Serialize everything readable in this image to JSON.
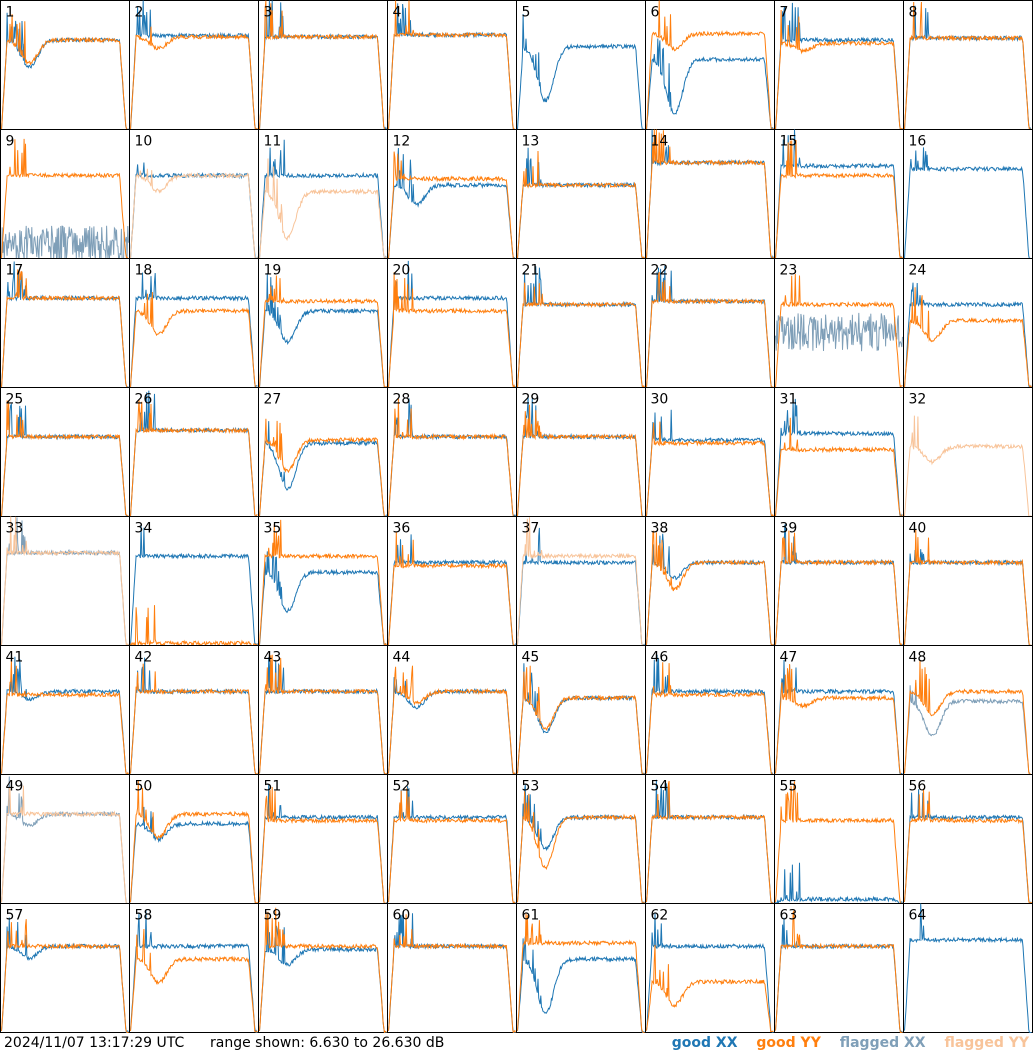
{
  "footer": {
    "timestamp": "2024/11/07 13:17:29 UTC",
    "range": "range shown: 6.630 to 26.630 dB"
  },
  "legend": [
    {
      "label": "good XX",
      "color": "#1f77b4"
    },
    {
      "label": "good YY",
      "color": "#ff7f0e"
    },
    {
      "label": "flagged XX",
      "color": "#7f9fb8"
    },
    {
      "label": "flagged YY",
      "color": "#f8c49a"
    }
  ],
  "chart_data": {
    "type": "line",
    "grid": {
      "rows": 8,
      "cols": 8
    },
    "ylim": [
      6.63,
      26.63
    ],
    "panel_labels": [
      "1",
      "2",
      "3",
      "4",
      "5",
      "6",
      "7",
      "8",
      "9",
      "10",
      "11",
      "12",
      "13",
      "14",
      "15",
      "16",
      "17",
      "18",
      "19",
      "20",
      "21",
      "22",
      "23",
      "24",
      "25",
      "26",
      "27",
      "28",
      "29",
      "30",
      "31",
      "32",
      "33",
      "34",
      "35",
      "36",
      "37",
      "38",
      "39",
      "40",
      "41",
      "42",
      "43",
      "44",
      "45",
      "46",
      "47",
      "48",
      "49",
      "50",
      "51",
      "52",
      "53",
      "54",
      "55",
      "56",
      "57",
      "58",
      "59",
      "60",
      "61",
      "62",
      "63",
      "64"
    ],
    "panels": [
      {
        "label": "1",
        "xx": {
          "level": 20.5,
          "state": "good",
          "dip": 0.35
        },
        "yy": {
          "level": 20.5,
          "state": "good",
          "dip": 0.3
        }
      },
      {
        "label": "2",
        "xx": {
          "level": 21.2,
          "state": "good",
          "dip": 0
        },
        "yy": {
          "level": 21.0,
          "state": "good",
          "dip": 0.15
        }
      },
      {
        "label": "3",
        "xx": {
          "level": 21.0,
          "state": "good",
          "dip": 0
        },
        "yy": {
          "level": 21.0,
          "state": "good",
          "dip": 0
        }
      },
      {
        "label": "4",
        "xx": {
          "level": 21.3,
          "state": "good",
          "dip": 0
        },
        "yy": {
          "level": 21.3,
          "state": "good",
          "dip": 0
        }
      },
      {
        "label": "5",
        "xx": {
          "level": 19.5,
          "state": "good",
          "dip": 0.7
        },
        "yy": {
          "level": null,
          "state": "none",
          "dip": 0
        }
      },
      {
        "label": "6",
        "xx": {
          "level": 17.5,
          "state": "good",
          "dip": 0.7
        },
        "yy": {
          "level": 21.5,
          "state": "good",
          "dip": 0.2
        }
      },
      {
        "label": "7",
        "xx": {
          "level": 20.5,
          "state": "good",
          "dip": 0
        },
        "yy": {
          "level": 20.0,
          "state": "good",
          "dip": 0.1
        }
      },
      {
        "label": "8",
        "xx": {
          "level": 20.8,
          "state": "good",
          "dip": 0
        },
        "yy": {
          "level": 20.8,
          "state": "good",
          "dip": 0
        }
      },
      {
        "label": "9",
        "xx": {
          "level": 7.5,
          "state": "flagged",
          "dip": 0
        },
        "yy": {
          "level": 19.5,
          "state": "good",
          "dip": 0
        }
      },
      {
        "label": "10",
        "xx": {
          "level": 19.5,
          "state": "good",
          "dip": 0
        },
        "yy": {
          "level": 19.5,
          "state": "flagged",
          "dip": 0.2
        }
      },
      {
        "label": "11",
        "xx": {
          "level": 19.5,
          "state": "good",
          "dip": 0
        },
        "yy": {
          "level": 17.0,
          "state": "flagged",
          "dip": 0.6
        }
      },
      {
        "label": "12",
        "xx": {
          "level": 18.0,
          "state": "good",
          "dip": 0.25
        },
        "yy": {
          "level": 19.0,
          "state": "good",
          "dip": 0
        }
      },
      {
        "label": "13",
        "xx": {
          "level": 18.0,
          "state": "good",
          "dip": 0
        },
        "yy": {
          "level": 18.0,
          "state": "good",
          "dip": 0
        }
      },
      {
        "label": "14",
        "xx": {
          "level": 21.5,
          "state": "good",
          "dip": 0
        },
        "yy": {
          "level": 21.5,
          "state": "good",
          "dip": 0
        }
      },
      {
        "label": "15",
        "xx": {
          "level": 21.0,
          "state": "good",
          "dip": 0
        },
        "yy": {
          "level": 19.5,
          "state": "good",
          "dip": 0
        }
      },
      {
        "label": "16",
        "xx": {
          "level": 20.5,
          "state": "good",
          "dip": 0
        },
        "yy": {
          "level": null,
          "state": "none",
          "dip": 0
        }
      },
      {
        "label": "17",
        "xx": {
          "level": 20.5,
          "state": "good",
          "dip": 0
        },
        "yy": {
          "level": 20.5,
          "state": "good",
          "dip": 0
        }
      },
      {
        "label": "18",
        "xx": {
          "level": 20.5,
          "state": "good",
          "dip": 0
        },
        "yy": {
          "level": 18.5,
          "state": "good",
          "dip": 0.3
        }
      },
      {
        "label": "19",
        "xx": {
          "level": 18.5,
          "state": "good",
          "dip": 0.4
        },
        "yy": {
          "level": 20.0,
          "state": "good",
          "dip": 0
        }
      },
      {
        "label": "20",
        "xx": {
          "level": 20.5,
          "state": "good",
          "dip": 0
        },
        "yy": {
          "level": 18.5,
          "state": "good",
          "dip": 0
        }
      },
      {
        "label": "21",
        "xx": {
          "level": 19.5,
          "state": "good",
          "dip": 0
        },
        "yy": {
          "level": 19.5,
          "state": "good",
          "dip": 0
        }
      },
      {
        "label": "22",
        "xx": {
          "level": 20.0,
          "state": "good",
          "dip": 0
        },
        "yy": {
          "level": 20.0,
          "state": "good",
          "dip": 0
        }
      },
      {
        "label": "23",
        "xx": {
          "level": 14.0,
          "state": "flagged",
          "dip": 0
        },
        "yy": {
          "level": 19.5,
          "state": "good",
          "dip": 0
        }
      },
      {
        "label": "24",
        "xx": {
          "level": 19.5,
          "state": "good",
          "dip": 0
        },
        "yy": {
          "level": 17.0,
          "state": "good",
          "dip": 0.25
        }
      },
      {
        "label": "25",
        "xx": {
          "level": 19.0,
          "state": "good",
          "dip": 0
        },
        "yy": {
          "level": 19.0,
          "state": "good",
          "dip": 0
        }
      },
      {
        "label": "26",
        "xx": {
          "level": 20.0,
          "state": "good",
          "dip": 0
        },
        "yy": {
          "level": 20.0,
          "state": "good",
          "dip": 0
        }
      },
      {
        "label": "27",
        "xx": {
          "level": 18.0,
          "state": "good",
          "dip": 0.6
        },
        "yy": {
          "level": 18.5,
          "state": "good",
          "dip": 0.4
        }
      },
      {
        "label": "28",
        "xx": {
          "level": 19.0,
          "state": "good",
          "dip": 0
        },
        "yy": {
          "level": 19.0,
          "state": "good",
          "dip": 0
        }
      },
      {
        "label": "29",
        "xx": {
          "level": 19.0,
          "state": "good",
          "dip": 0
        },
        "yy": {
          "level": 19.0,
          "state": "good",
          "dip": 0
        }
      },
      {
        "label": "30",
        "xx": {
          "level": 18.5,
          "state": "good",
          "dip": 0
        },
        "yy": {
          "level": 18.0,
          "state": "good",
          "dip": 0
        }
      },
      {
        "label": "31",
        "xx": {
          "level": 19.5,
          "state": "good",
          "dip": 0
        },
        "yy": {
          "level": 17.0,
          "state": "good",
          "dip": 0
        }
      },
      {
        "label": "32",
        "xx": {
          "level": null,
          "state": "none",
          "dip": 0
        },
        "yy": {
          "level": 17.5,
          "state": "flagged",
          "dip": 0.2
        }
      },
      {
        "label": "33",
        "xx": {
          "level": 21.0,
          "state": "flagged",
          "dip": 0
        },
        "yy": {
          "level": 21.0,
          "state": "flagged",
          "dip": 0
        }
      },
      {
        "label": "34",
        "xx": {
          "level": 20.5,
          "state": "good",
          "dip": 0
        },
        "yy": {
          "level": 7.0,
          "state": "good",
          "dip": 0
        }
      },
      {
        "label": "35",
        "xx": {
          "level": 18.0,
          "state": "good",
          "dip": 0.5
        },
        "yy": {
          "level": 20.5,
          "state": "good",
          "dip": 0
        }
      },
      {
        "label": "36",
        "xx": {
          "level": 19.5,
          "state": "good",
          "dip": 0
        },
        "yy": {
          "level": 19.0,
          "state": "good",
          "dip": 0
        }
      },
      {
        "label": "37",
        "xx": {
          "level": 19.5,
          "state": "good",
          "dip": 0
        },
        "yy": {
          "level": 20.5,
          "state": "flagged",
          "dip": 0
        }
      },
      {
        "label": "38",
        "xx": {
          "level": 19.5,
          "state": "good",
          "dip": 0.2
        },
        "yy": {
          "level": 19.5,
          "state": "good",
          "dip": 0.35
        }
      },
      {
        "label": "39",
        "xx": {
          "level": 19.5,
          "state": "good",
          "dip": 0
        },
        "yy": {
          "level": 19.5,
          "state": "good",
          "dip": 0
        }
      },
      {
        "label": "40",
        "xx": {
          "level": 19.5,
          "state": "good",
          "dip": 0
        },
        "yy": {
          "level": 19.5,
          "state": "good",
          "dip": 0
        }
      },
      {
        "label": "41",
        "xx": {
          "level": 19.5,
          "state": "good",
          "dip": 0.1
        },
        "yy": {
          "level": 19.0,
          "state": "good",
          "dip": 0
        }
      },
      {
        "label": "42",
        "xx": {
          "level": 19.5,
          "state": "good",
          "dip": 0
        },
        "yy": {
          "level": 19.5,
          "state": "good",
          "dip": 0
        }
      },
      {
        "label": "43",
        "xx": {
          "level": 19.5,
          "state": "good",
          "dip": 0
        },
        "yy": {
          "level": 19.5,
          "state": "good",
          "dip": 0
        }
      },
      {
        "label": "44",
        "xx": {
          "level": 19.5,
          "state": "good",
          "dip": 0.2
        },
        "yy": {
          "level": 19.5,
          "state": "good",
          "dip": 0.15
        }
      },
      {
        "label": "45",
        "xx": {
          "level": 18.5,
          "state": "good",
          "dip": 0.45
        },
        "yy": {
          "level": 18.5,
          "state": "good",
          "dip": 0.4
        }
      },
      {
        "label": "46",
        "xx": {
          "level": 19.5,
          "state": "good",
          "dip": 0
        },
        "yy": {
          "level": 19.0,
          "state": "good",
          "dip": 0
        }
      },
      {
        "label": "47",
        "xx": {
          "level": 19.5,
          "state": "good",
          "dip": 0
        },
        "yy": {
          "level": 18.5,
          "state": "good",
          "dip": 0.1
        }
      },
      {
        "label": "48",
        "xx": {
          "level": 18.0,
          "state": "flagged",
          "dip": 0.45
        },
        "yy": {
          "level": 19.5,
          "state": "good",
          "dip": 0.3
        }
      },
      {
        "label": "49",
        "xx": {
          "level": 20.5,
          "state": "flagged",
          "dip": 0.15
        },
        "yy": {
          "level": 20.5,
          "state": "flagged",
          "dip": 0
        }
      },
      {
        "label": "50",
        "xx": {
          "level": 19.0,
          "state": "good",
          "dip": 0.2
        },
        "yy": {
          "level": 20.5,
          "state": "good",
          "dip": 0.3
        }
      },
      {
        "label": "51",
        "xx": {
          "level": 20.0,
          "state": "good",
          "dip": 0
        },
        "yy": {
          "level": 19.5,
          "state": "good",
          "dip": 0
        }
      },
      {
        "label": "52",
        "xx": {
          "level": 20.0,
          "state": "good",
          "dip": 0
        },
        "yy": {
          "level": 19.5,
          "state": "good",
          "dip": 0
        }
      },
      {
        "label": "53",
        "xx": {
          "level": 20.0,
          "state": "good",
          "dip": 0.4
        },
        "yy": {
          "level": 20.0,
          "state": "good",
          "dip": 0.65
        }
      },
      {
        "label": "54",
        "xx": {
          "level": 20.0,
          "state": "good",
          "dip": 0
        },
        "yy": {
          "level": 20.0,
          "state": "good",
          "dip": 0
        }
      },
      {
        "label": "55",
        "xx": {
          "level": 7.3,
          "state": "good",
          "dip": 0
        },
        "yy": {
          "level": 19.5,
          "state": "good",
          "dip": 0
        }
      },
      {
        "label": "56",
        "xx": {
          "level": 20.0,
          "state": "good",
          "dip": 0
        },
        "yy": {
          "level": 19.5,
          "state": "good",
          "dip": 0
        }
      },
      {
        "label": "57",
        "xx": {
          "level": 20.0,
          "state": "good",
          "dip": 0.15
        },
        "yy": {
          "level": 20.0,
          "state": "good",
          "dip": 0
        }
      },
      {
        "label": "58",
        "xx": {
          "level": 20.0,
          "state": "good",
          "dip": 0
        },
        "yy": {
          "level": 18.0,
          "state": "good",
          "dip": 0.3
        }
      },
      {
        "label": "59",
        "xx": {
          "level": 19.5,
          "state": "good",
          "dip": 0.2
        },
        "yy": {
          "level": 20.0,
          "state": "good",
          "dip": 0
        }
      },
      {
        "label": "60",
        "xx": {
          "level": 20.0,
          "state": "good",
          "dip": 0
        },
        "yy": {
          "level": 20.0,
          "state": "good",
          "dip": 0
        }
      },
      {
        "label": "61",
        "xx": {
          "level": 18.0,
          "state": "good",
          "dip": 0.7
        },
        "yy": {
          "level": 20.5,
          "state": "good",
          "dip": 0
        }
      },
      {
        "label": "62",
        "xx": {
          "level": 20.0,
          "state": "good",
          "dip": 0
        },
        "yy": {
          "level": 14.5,
          "state": "good",
          "dip": 0.3
        }
      },
      {
        "label": "63",
        "xx": {
          "level": 20.0,
          "state": "good",
          "dip": 0
        },
        "yy": {
          "level": 20.0,
          "state": "good",
          "dip": 0
        }
      },
      {
        "label": "64",
        "xx": {
          "level": 21.0,
          "state": "good",
          "dip": 0
        },
        "yy": {
          "level": null,
          "state": "none",
          "dip": 0
        }
      }
    ]
  }
}
